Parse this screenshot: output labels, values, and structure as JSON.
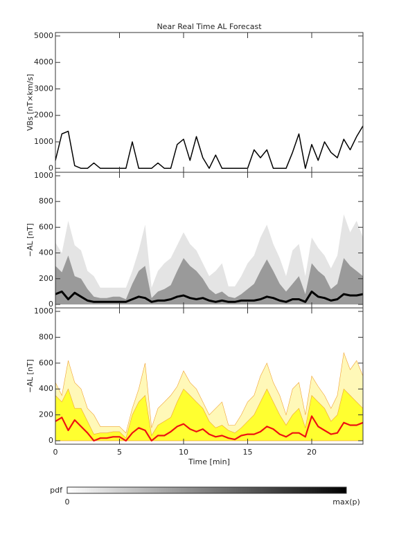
{
  "chart_data": [
    {
      "type": "line",
      "title": "Near Real Time AL Forecast",
      "ylabel": "VBs [nT×km/s]",
      "x": [
        0,
        0.5,
        1,
        1.5,
        2,
        2.5,
        3,
        3.5,
        4,
        4.5,
        5,
        5.5,
        6,
        6.5,
        7,
        7.5,
        8,
        8.5,
        9,
        9.5,
        10,
        10.5,
        11,
        11.5,
        12,
        12.5,
        13,
        13.5,
        14,
        14.5,
        15,
        15.5,
        16,
        16.5,
        17,
        17.5,
        18,
        18.5,
        19,
        19.5,
        20,
        20.5,
        21,
        21.5,
        22,
        22.5,
        23,
        23.5,
        24
      ],
      "series": [
        {
          "color": "#000000",
          "fill": false,
          "values": [
            300,
            1300,
            1400,
            100,
            0,
            0,
            200,
            0,
            0,
            0,
            0,
            0,
            1000,
            0,
            0,
            0,
            200,
            0,
            0,
            900,
            1100,
            300,
            1200,
            400,
            0,
            500,
            0,
            0,
            0,
            0,
            0,
            700,
            400,
            700,
            0,
            0,
            0,
            600,
            1300,
            0,
            900,
            300,
            1000,
            600,
            400,
            1100,
            700,
            1200,
            1600
          ]
        }
      ],
      "xlim": [
        0,
        24
      ],
      "xticks": [
        0,
        5,
        10,
        15,
        20
      ],
      "ylim": [
        -150,
        5130
      ],
      "yticks": [
        0,
        1000,
        2000,
        3000,
        4000,
        5000
      ]
    },
    {
      "type": "area",
      "ylabel": "−AL [nT]",
      "x": [
        0,
        0.5,
        1,
        1.5,
        2,
        2.5,
        3,
        3.5,
        4,
        4.5,
        5,
        5.5,
        6,
        6.5,
        7,
        7.5,
        8,
        8.5,
        9,
        9.5,
        10,
        10.5,
        11,
        11.5,
        12,
        12.5,
        13,
        13.5,
        14,
        14.5,
        15,
        15.5,
        16,
        16.5,
        17,
        17.5,
        18,
        18.5,
        19,
        19.5,
        20,
        20.5,
        21,
        21.5,
        22,
        22.5,
        23,
        23.5,
        24
      ],
      "series": [
        {
          "color": "#e4e4e4",
          "fill": true,
          "values": [
            480,
            400,
            650,
            460,
            420,
            260,
            220,
            130,
            130,
            130,
            130,
            130,
            260,
            420,
            620,
            130,
            260,
            320,
            360,
            460,
            560,
            470,
            420,
            320,
            220,
            260,
            320,
            140,
            140,
            220,
            320,
            380,
            520,
            620,
            470,
            360,
            220,
            420,
            470,
            220,
            520,
            440,
            380,
            280,
            380,
            700,
            560,
            650,
            520
          ]
        },
        {
          "color": "#9a9a9a",
          "fill": true,
          "values": [
            300,
            250,
            380,
            220,
            200,
            120,
            60,
            50,
            50,
            60,
            60,
            40,
            160,
            260,
            300,
            50,
            100,
            120,
            150,
            260,
            360,
            300,
            260,
            200,
            120,
            80,
            100,
            60,
            50,
            80,
            120,
            160,
            260,
            350,
            260,
            160,
            100,
            160,
            220,
            80,
            320,
            260,
            220,
            120,
            160,
            360,
            300,
            260,
            220
          ]
        },
        {
          "color": "#000000",
          "fill": false,
          "values": [
            80,
            100,
            40,
            90,
            60,
            30,
            20,
            20,
            20,
            20,
            20,
            20,
            40,
            60,
            50,
            20,
            30,
            30,
            40,
            60,
            70,
            50,
            40,
            50,
            30,
            20,
            30,
            20,
            20,
            30,
            30,
            30,
            40,
            60,
            50,
            30,
            20,
            40,
            40,
            20,
            100,
            60,
            50,
            30,
            40,
            80,
            70,
            70,
            80
          ]
        }
      ],
      "xlim": [
        0,
        24
      ],
      "xticks": [
        0,
        5,
        10,
        15,
        20
      ],
      "ylim": [
        -27,
        1027
      ],
      "yticks": [
        0,
        200,
        400,
        600,
        800,
        1000
      ]
    },
    {
      "type": "area",
      "ylabel": "−AL [nT]",
      "xlabel": "Time [min]",
      "x": [
        0,
        0.5,
        1,
        1.5,
        2,
        2.5,
        3,
        3.5,
        4,
        4.5,
        5,
        5.5,
        6,
        6.5,
        7,
        7.5,
        8,
        8.5,
        9,
        9.5,
        10,
        10.5,
        11,
        11.5,
        12,
        12.5,
        13,
        13.5,
        14,
        14.5,
        15,
        15.5,
        16,
        16.5,
        17,
        17.5,
        18,
        18.5,
        19,
        19.5,
        20,
        20.5,
        21,
        21.5,
        22,
        22.5,
        23,
        23.5,
        24
      ],
      "series": [
        {
          "color": "#fff8b8",
          "fill": true,
          "values": [
            450,
            350,
            620,
            450,
            400,
            250,
            200,
            110,
            110,
            110,
            110,
            60,
            250,
            400,
            600,
            100,
            250,
            300,
            350,
            420,
            540,
            450,
            400,
            300,
            200,
            250,
            300,
            120,
            120,
            200,
            300,
            350,
            500,
            600,
            450,
            350,
            200,
            400,
            450,
            200,
            500,
            420,
            350,
            250,
            350,
            680,
            550,
            620,
            500
          ]
        },
        {
          "color": "#ffff30",
          "fill": true,
          "values": [
            350,
            300,
            400,
            250,
            250,
            150,
            50,
            60,
            60,
            70,
            70,
            20,
            200,
            300,
            350,
            40,
            120,
            150,
            180,
            300,
            400,
            350,
            300,
            250,
            150,
            100,
            120,
            80,
            60,
            100,
            150,
            200,
            300,
            400,
            300,
            200,
            120,
            200,
            250,
            100,
            350,
            300,
            250,
            150,
            200,
            400,
            350,
            300,
            250
          ]
        },
        {
          "color": "#ee1111",
          "fill": false,
          "values": [
            150,
            180,
            80,
            160,
            110,
            60,
            0,
            20,
            20,
            30,
            30,
            0,
            60,
            100,
            80,
            0,
            40,
            40,
            70,
            110,
            130,
            90,
            70,
            90,
            50,
            30,
            40,
            20,
            10,
            40,
            50,
            50,
            70,
            110,
            90,
            50,
            30,
            60,
            60,
            30,
            190,
            110,
            80,
            50,
            60,
            140,
            120,
            120,
            140
          ]
        }
      ],
      "xlim": [
        0,
        24
      ],
      "xticks": [
        0,
        5,
        10,
        15,
        20
      ],
      "ylim": [
        -27,
        1027
      ],
      "yticks": [
        0,
        200,
        400,
        600,
        800,
        1000
      ]
    }
  ],
  "colorbar": {
    "label": "pdf",
    "min_label": "0",
    "max_label": "max(p)",
    "colors": [
      "#ffffff",
      "#000000"
    ]
  }
}
